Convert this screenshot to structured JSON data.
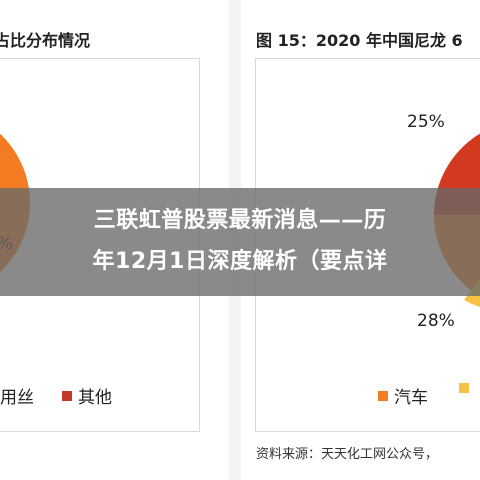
{
  "left_chart": {
    "title": "占比分布情况",
    "percent_fragment": "%",
    "legend": [
      {
        "label": "用丝",
        "color": "#f37b21",
        "visible_swatch": false
      },
      {
        "label": "其他",
        "color": "#c0392b",
        "visible_swatch": true
      }
    ]
  },
  "right_chart": {
    "title": "图 15：2020 年中国尼龙 6",
    "percent_labels": [
      "25%",
      "28%"
    ],
    "legend": [
      {
        "label": "汽车",
        "color": "#f37b21"
      },
      {
        "label": "",
        "color": "#f5c242"
      }
    ],
    "source": "资料来源：天天化工网公众号，"
  },
  "overlay": {
    "line1": "三联虹普股票最新消息——历",
    "line2": "年12月1日深度解析（要点详"
  },
  "colors": {
    "orange": "#f37b21",
    "red": "#d23a1f",
    "yellow": "#f5c242",
    "dark_red": "#c0392b"
  }
}
